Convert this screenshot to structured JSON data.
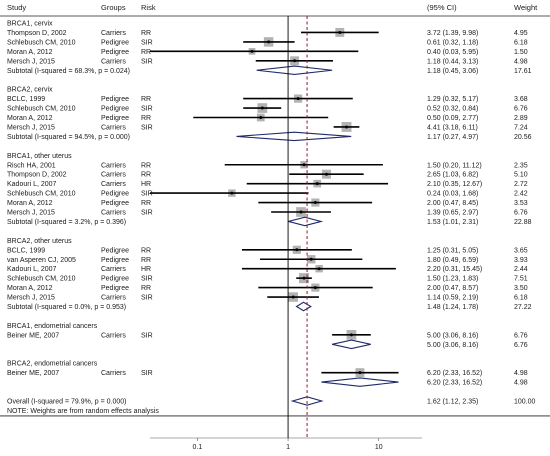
{
  "chart_data": {
    "type": "forest",
    "headers": {
      "study": "Study",
      "groups": "Groups",
      "risk": "Risk",
      "ci": "(95% CI)",
      "weight": "Weight"
    },
    "x_scale": "log",
    "xlim": [
      0.03,
      30
    ],
    "x_ticks": [
      0.1,
      1,
      10
    ],
    "x_tick_labels": [
      "0.1",
      "1",
      "10"
    ],
    "overall_line_at": 1.62,
    "rows": [
      {
        "kind": "group",
        "label": "BRCA1, cervix"
      },
      {
        "kind": "study",
        "study": "Thompson D, 2002",
        "group": "Carriers",
        "risk": "RR",
        "est": 3.72,
        "lo": 1.39,
        "hi": 9.98,
        "ci": "3.72 (1.39, 9.98)",
        "weight": "4.95"
      },
      {
        "kind": "study",
        "study": "Schlebusch CM, 2010",
        "group": "Pedigree",
        "risk": "SIR",
        "est": 0.61,
        "lo": 0.32,
        "hi": 1.18,
        "ci": "0.61 (0.32, 1.18)",
        "weight": "6.18"
      },
      {
        "kind": "study",
        "study": "Moran A, 2012",
        "group": "Pedigree",
        "risk": "RR",
        "est": 0.4,
        "lo": 0.03,
        "hi": 5.95,
        "ci": "0.40 (0.03, 5.95)",
        "weight": "1.50"
      },
      {
        "kind": "study",
        "study": "Mersch J, 2015",
        "group": "Carriers",
        "risk": "SIR",
        "est": 1.18,
        "lo": 0.44,
        "hi": 3.13,
        "ci": "1.18 (0.44, 3.13)",
        "weight": "4.98"
      },
      {
        "kind": "subtotal",
        "label": "Subtotal  (I-squared = 68.3%, p = 0.024)",
        "est": 1.18,
        "lo": 0.45,
        "hi": 3.06,
        "ci": "1.18 (0.45, 3.06)",
        "weight": "17.61"
      },
      {
        "kind": "gap"
      },
      {
        "kind": "group",
        "label": "BRCA2, cervix"
      },
      {
        "kind": "study",
        "study": "BCLC, 1999",
        "group": "Pedigree",
        "risk": "RR",
        "est": 1.29,
        "lo": 0.32,
        "hi": 5.17,
        "ci": "1.29 (0.32, 5.17)",
        "weight": "3.68"
      },
      {
        "kind": "study",
        "study": "Schlebusch CM, 2010",
        "group": "Pedigree",
        "risk": "SIR",
        "est": 0.52,
        "lo": 0.32,
        "hi": 0.84,
        "ci": "0.52 (0.32, 0.84)",
        "weight": "6.76"
      },
      {
        "kind": "study",
        "study": "Moran A, 2012",
        "group": "Pedigree",
        "risk": "RR",
        "est": 0.5,
        "lo": 0.09,
        "hi": 2.77,
        "ci": "0.50 (0.09, 2.77)",
        "weight": "2.89"
      },
      {
        "kind": "study",
        "study": "Mersch J, 2015",
        "group": "Carriers",
        "risk": "SIR",
        "est": 4.41,
        "lo": 3.18,
        "hi": 6.11,
        "ci": "4.41 (3.18, 6.11)",
        "weight": "7.24"
      },
      {
        "kind": "subtotal",
        "label": "Subtotal  (I-squared = 94.5%, p = 0.000)",
        "est": 1.17,
        "lo": 0.27,
        "hi": 4.97,
        "ci": "1.17 (0.27, 4.97)",
        "weight": "20.56"
      },
      {
        "kind": "gap"
      },
      {
        "kind": "group",
        "label": "BRCA1, other uterus"
      },
      {
        "kind": "study",
        "study": "Risch HA, 2001",
        "group": "Carriers",
        "risk": "RR",
        "est": 1.5,
        "lo": 0.2,
        "hi": 11.12,
        "ci": "1.50 (0.20, 11.12)",
        "weight": "2.35"
      },
      {
        "kind": "study",
        "study": "Thompson D, 2002",
        "group": "Carriers",
        "risk": "RR",
        "est": 2.65,
        "lo": 1.03,
        "hi": 6.82,
        "ci": "2.65 (1.03, 6.82)",
        "weight": "5.10"
      },
      {
        "kind": "study",
        "study": "Kadouri L, 2007",
        "group": "Carriers",
        "risk": "HR",
        "est": 2.1,
        "lo": 0.35,
        "hi": 12.67,
        "ci": "2.10 (0.35, 12.67)",
        "weight": "2.72"
      },
      {
        "kind": "study",
        "study": "Schlebusch CM, 2010",
        "group": "Pedigree",
        "risk": "SIR",
        "est": 0.24,
        "lo": 0.03,
        "hi": 1.68,
        "ci": "0.24 (0.03, 1.68)",
        "weight": "2.42"
      },
      {
        "kind": "study",
        "study": "Moran A, 2012",
        "group": "Pedigree",
        "risk": "RR",
        "est": 2.0,
        "lo": 0.47,
        "hi": 8.45,
        "ci": "2.00 (0.47, 8.45)",
        "weight": "3.53"
      },
      {
        "kind": "study",
        "study": "Mersch J, 2015",
        "group": "Carriers",
        "risk": "SIR",
        "est": 1.39,
        "lo": 0.65,
        "hi": 2.97,
        "ci": "1.39 (0.65, 2.97)",
        "weight": "6.76"
      },
      {
        "kind": "subtotal",
        "label": "Subtotal  (I-squared = 3.2%, p = 0.396)",
        "est": 1.53,
        "lo": 1.01,
        "hi": 2.31,
        "ci": "1.53 (1.01, 2.31)",
        "weight": "22.88"
      },
      {
        "kind": "gap"
      },
      {
        "kind": "group",
        "label": "BRCA2, other uterus"
      },
      {
        "kind": "study",
        "study": "BCLC, 1999",
        "group": "Pedigree",
        "risk": "RR",
        "est": 1.25,
        "lo": 0.31,
        "hi": 5.05,
        "ci": "1.25 (0.31, 5.05)",
        "weight": "3.65"
      },
      {
        "kind": "study",
        "study": "van Asperen CJ, 2005",
        "group": "Pedigree",
        "risk": "RR",
        "est": 1.8,
        "lo": 0.49,
        "hi": 6.59,
        "ci": "1.80 (0.49, 6.59)",
        "weight": "3.93"
      },
      {
        "kind": "study",
        "study": "Kadouri L, 2007",
        "group": "Carriers",
        "risk": "HR",
        "est": 2.2,
        "lo": 0.31,
        "hi": 15.45,
        "ci": "2.20 (0.31, 15.45)",
        "weight": "2.44"
      },
      {
        "kind": "study",
        "study": "Schlebusch CM, 2010",
        "group": "Pedigree",
        "risk": "SIR",
        "est": 1.5,
        "lo": 1.23,
        "hi": 1.83,
        "ci": "1.50 (1.23, 1.83)",
        "weight": "7.51"
      },
      {
        "kind": "study",
        "study": "Moran A, 2012",
        "group": "Pedigree",
        "risk": "RR",
        "est": 2.0,
        "lo": 0.47,
        "hi": 8.57,
        "ci": "2.00 (0.47, 8.57)",
        "weight": "3.50"
      },
      {
        "kind": "study",
        "study": "Mersch J, 2015",
        "group": "Carriers",
        "risk": "SIR",
        "est": 1.14,
        "lo": 0.59,
        "hi": 2.19,
        "ci": "1.14 (0.59, 2.19)",
        "weight": "6.18"
      },
      {
        "kind": "subtotal",
        "label": "Subtotal  (I-squared = 0.0%, p = 0.953)",
        "est": 1.48,
        "lo": 1.24,
        "hi": 1.78,
        "ci": "1.48 (1.24, 1.78)",
        "weight": "27.22"
      },
      {
        "kind": "gap"
      },
      {
        "kind": "group",
        "label": "BRCA1, endometrial cancers"
      },
      {
        "kind": "study",
        "study": "Beiner ME, 2007",
        "group": "Carriers",
        "risk": "SIR",
        "est": 5.0,
        "lo": 3.06,
        "hi": 8.16,
        "ci": "5.00 (3.06, 8.16)",
        "weight": "6.76"
      },
      {
        "kind": "subtotal",
        "label": "",
        "est": 5.0,
        "lo": 3.06,
        "hi": 8.16,
        "ci": "5.00 (3.06, 8.16)",
        "weight": "6.76"
      },
      {
        "kind": "gap"
      },
      {
        "kind": "group",
        "label": "BRCA2, endometrial cancers"
      },
      {
        "kind": "study",
        "study": "Beiner ME, 2007",
        "group": "Carriers",
        "risk": "SIR",
        "est": 6.2,
        "lo": 2.33,
        "hi": 16.52,
        "ci": "6.20 (2.33, 16.52)",
        "weight": "4.98"
      },
      {
        "kind": "subtotal",
        "label": "",
        "est": 6.2,
        "lo": 2.33,
        "hi": 16.52,
        "ci": "6.20 (2.33, 16.52)",
        "weight": "4.98"
      },
      {
        "kind": "gap"
      },
      {
        "kind": "overall",
        "label": "Overall  (I-squared = 79.9%, p = 0.000)",
        "est": 1.62,
        "lo": 1.12,
        "hi": 2.35,
        "ci": "1.62 (1.12, 2.35)",
        "weight": "100.00"
      },
      {
        "kind": "note",
        "label": "NOTE: Weights are from random effects analysis"
      }
    ]
  }
}
